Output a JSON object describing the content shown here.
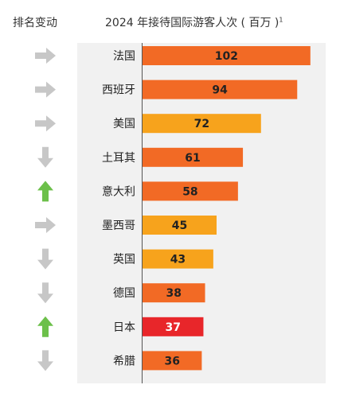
{
  "header": {
    "rank_label": "排名变动",
    "title": "2024 年接待国际游客人次 ( 百万 )",
    "title_footnote": "1"
  },
  "colors": {
    "orange": "#f26a25",
    "amber": "#f7a31c",
    "red": "#e8262a",
    "arrow_gray": "#c7c7c7",
    "arrow_green": "#6cc04a"
  },
  "chart_data": {
    "type": "bar",
    "orientation": "horizontal",
    "title": "2024 年接待国际游客人次 ( 百万 )",
    "unit": "百万",
    "categories": [
      "法国",
      "西班牙",
      "美国",
      "土耳其",
      "意大利",
      "墨西哥",
      "英国",
      "德国",
      "日本",
      "希腊"
    ],
    "values": [
      102,
      94,
      72,
      61,
      58,
      45,
      43,
      38,
      37,
      36
    ],
    "bar_colors": [
      "orange",
      "orange",
      "amber",
      "orange",
      "orange",
      "amber",
      "amber",
      "orange",
      "red",
      "orange"
    ],
    "rank_change": [
      "same",
      "same",
      "same",
      "down",
      "up",
      "same",
      "down",
      "down",
      "up",
      "down"
    ],
    "xlim": [
      0,
      105
    ],
    "grid": false,
    "legend": "none"
  }
}
